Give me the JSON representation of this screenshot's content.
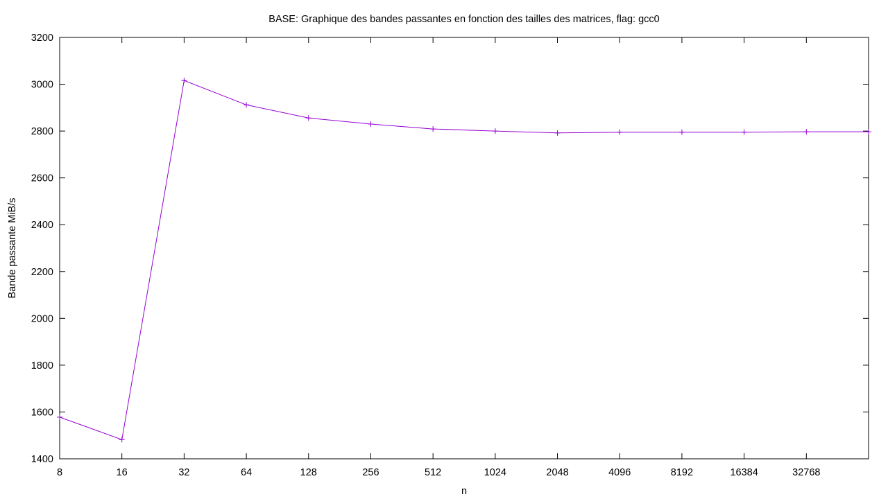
{
  "chart_data": {
    "type": "line",
    "title": "BASE: Graphique des bandes passantes en fonction des tailles des matrices, flag: gcc0",
    "xlabel": "n",
    "ylabel": "Bande passante MiB/s",
    "x_scale": "log2",
    "xlim": [
      8,
      65536
    ],
    "ylim": [
      1400,
      3200
    ],
    "x_ticks": [
      8,
      16,
      32,
      64,
      128,
      256,
      512,
      1024,
      2048,
      4096,
      8192,
      16384,
      32768
    ],
    "y_ticks": [
      1400,
      1600,
      1800,
      2000,
      2200,
      2400,
      2600,
      2800,
      3000,
      3200
    ],
    "grid": false,
    "legend": "none",
    "series": [
      {
        "color": "#9400d3",
        "marker": "plus",
        "x": [
          8,
          16,
          32,
          64,
          128,
          256,
          512,
          1024,
          2048,
          4096,
          8192,
          16384,
          32768,
          65536
        ],
        "y": [
          1578,
          1482,
          3016,
          2912,
          2856,
          2830,
          2809,
          2800,
          2792,
          2795,
          2795,
          2795,
          2797,
          2797
        ]
      }
    ]
  }
}
